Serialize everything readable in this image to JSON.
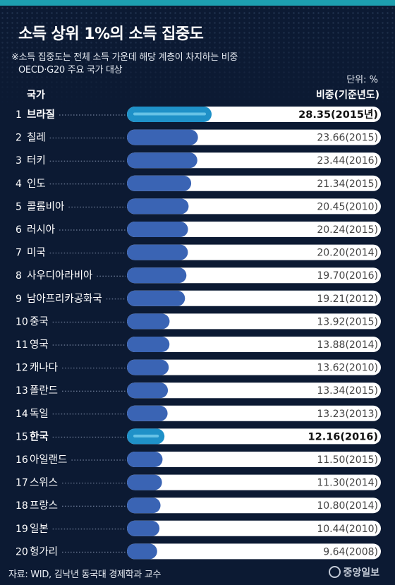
{
  "title": "소득 상위 1%의 소득 집중도",
  "notes": [
    "※소득 집중도는 전체 소득 가운데 해당 계층이 차지하는 비중",
    "OECD·G20 주요 국가 대상"
  ],
  "unit": "단위: %",
  "source": "자료: WID, 김낙년 동국대 경제학과 교수",
  "logo": "중앙일보",
  "colors": {
    "background": "#0c1a33",
    "bar": "#3a64b4",
    "highlight": "#1f91c8",
    "track": "#ffffff",
    "accent_top": "#1d9fb0"
  },
  "chart_data": {
    "type": "bar",
    "orientation": "horizontal",
    "column_headers": {
      "category": "국가",
      "value": "비중(기준년도)"
    },
    "rows": [
      {
        "rank": "1",
        "country": "브라질",
        "value": 28.35,
        "label": "28.35(2015년)",
        "highlight": true
      },
      {
        "rank": "2",
        "country": "칠레",
        "value": 23.66,
        "label": "23.66(2015)",
        "highlight": false
      },
      {
        "rank": "3",
        "country": "터키",
        "value": 23.44,
        "label": "23.44(2016)",
        "highlight": false
      },
      {
        "rank": "4",
        "country": "인도",
        "value": 21.34,
        "label": "21.34(2015)",
        "highlight": false
      },
      {
        "rank": "5",
        "country": "콜롬비아",
        "value": 20.45,
        "label": "20.45(2010)",
        "highlight": false
      },
      {
        "rank": "6",
        "country": "러시아",
        "value": 20.24,
        "label": "20.24(2015)",
        "highlight": false
      },
      {
        "rank": "7",
        "country": "미국",
        "value": 20.2,
        "label": "20.20(2014)",
        "highlight": false
      },
      {
        "rank": "8",
        "country": "사우디아라비아",
        "value": 19.7,
        "label": "19.70(2016)",
        "highlight": false
      },
      {
        "rank": "9",
        "country": "남아프리카공화국",
        "value": 19.21,
        "label": "19.21(2012)",
        "highlight": false
      },
      {
        "rank": "10",
        "country": "중국",
        "value": 13.92,
        "label": "13.92(2015)",
        "highlight": false
      },
      {
        "rank": "11",
        "country": "영국",
        "value": 13.88,
        "label": "13.88(2014)",
        "highlight": false
      },
      {
        "rank": "12",
        "country": "캐나다",
        "value": 13.62,
        "label": "13.62(2010)",
        "highlight": false
      },
      {
        "rank": "13",
        "country": "폴란드",
        "value": 13.34,
        "label": "13.34(2015)",
        "highlight": false
      },
      {
        "rank": "14",
        "country": "독일",
        "value": 13.23,
        "label": "13.23(2013)",
        "highlight": false
      },
      {
        "rank": "15",
        "country": "한국",
        "value": 12.16,
        "label": "12.16(2016)",
        "highlight": true
      },
      {
        "rank": "16",
        "country": "아일랜드",
        "value": 11.5,
        "label": "11.50(2015)",
        "highlight": false
      },
      {
        "rank": "17",
        "country": "스위스",
        "value": 11.3,
        "label": "11.30(2014)",
        "highlight": false
      },
      {
        "rank": "18",
        "country": "프랑스",
        "value": 10.8,
        "label": "10.80(2014)",
        "highlight": false
      },
      {
        "rank": "19",
        "country": "일본",
        "value": 10.44,
        "label": "10.44(2010)",
        "highlight": false
      },
      {
        "rank": "20",
        "country": "헝가리",
        "value": 9.64,
        "label": "9.64(2008)",
        "highlight": false
      }
    ]
  }
}
